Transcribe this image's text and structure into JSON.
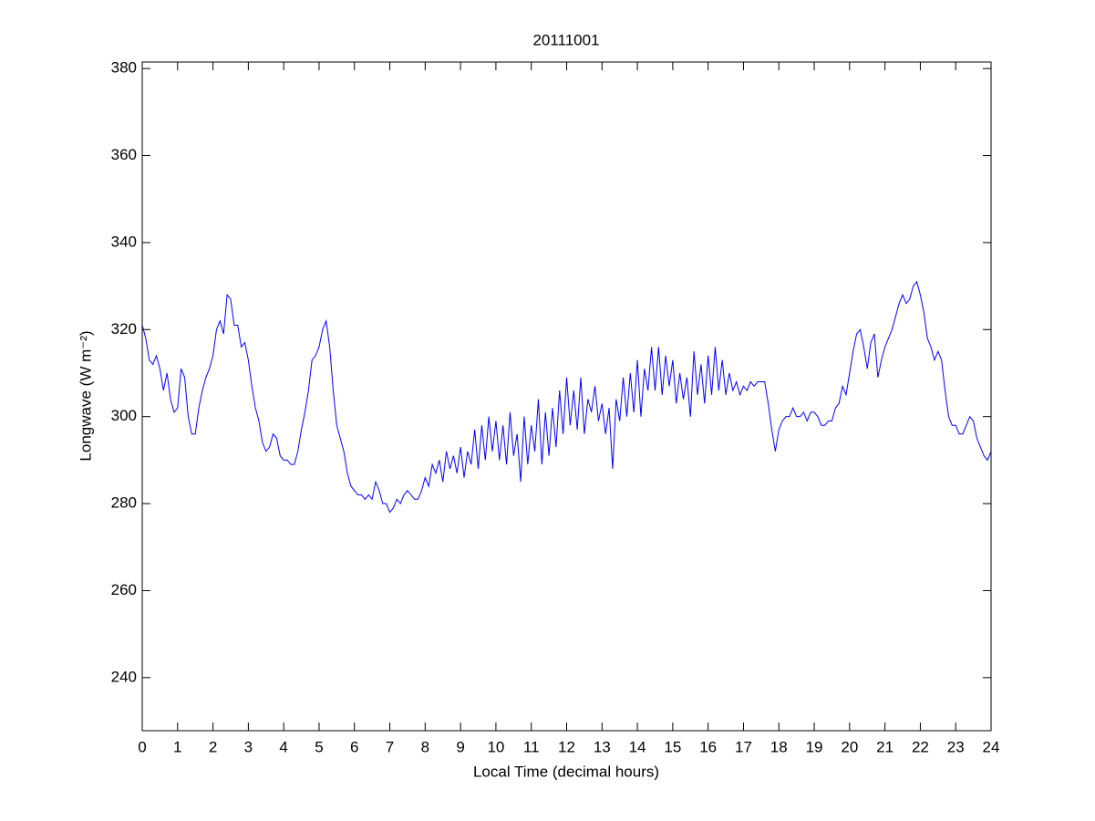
{
  "chart_data": {
    "type": "line",
    "title": "20111001",
    "xlabel": "Local Time (decimal hours)",
    "ylabel": "Longwave (W m⁻²)",
    "x": [
      0,
      0.1,
      0.2,
      0.3,
      0.4,
      0.5,
      0.6,
      0.7,
      0.8,
      0.9,
      1,
      1.1,
      1.2,
      1.3,
      1.4,
      1.5,
      1.6,
      1.7,
      1.8,
      1.9,
      2,
      2.1,
      2.2,
      2.3,
      2.4,
      2.5,
      2.6,
      2.7,
      2.8,
      2.9,
      3,
      3.1,
      3.2,
      3.3,
      3.4,
      3.5,
      3.6,
      3.7,
      3.8,
      3.9,
      4,
      4.1,
      4.2,
      4.3,
      4.4,
      4.5,
      4.6,
      4.7,
      4.8,
      4.9,
      5,
      5.1,
      5.2,
      5.3,
      5.4,
      5.5,
      5.6,
      5.7,
      5.8,
      5.9,
      6,
      6.1,
      6.2,
      6.3,
      6.4,
      6.5,
      6.6,
      6.7,
      6.8,
      6.9,
      7,
      7.1,
      7.2,
      7.3,
      7.4,
      7.5,
      7.6,
      7.7,
      7.8,
      7.9,
      8,
      8.1,
      8.2,
      8.3,
      8.4,
      8.5,
      8.6,
      8.7,
      8.8,
      8.9,
      9,
      9.1,
      9.2,
      9.3,
      9.4,
      9.5,
      9.6,
      9.7,
      9.8,
      9.9,
      10,
      10.1,
      10.2,
      10.3,
      10.4,
      10.5,
      10.6,
      10.7,
      10.8,
      10.9,
      11,
      11.1,
      11.2,
      11.3,
      11.4,
      11.5,
      11.6,
      11.7,
      11.8,
      11.9,
      12,
      12.1,
      12.2,
      12.3,
      12.4,
      12.5,
      12.6,
      12.7,
      12.8,
      12.9,
      13,
      13.1,
      13.2,
      13.3,
      13.4,
      13.5,
      13.6,
      13.7,
      13.8,
      13.9,
      14,
      14.1,
      14.2,
      14.3,
      14.4,
      14.5,
      14.6,
      14.7,
      14.8,
      14.9,
      15,
      15.1,
      15.2,
      15.3,
      15.4,
      15.5,
      15.6,
      15.7,
      15.8,
      15.9,
      16,
      16.1,
      16.2,
      16.3,
      16.4,
      16.5,
      16.6,
      16.7,
      16.8,
      16.9,
      17,
      17.1,
      17.2,
      17.3,
      17.4,
      17.5,
      17.6,
      17.7,
      17.8,
      17.9,
      18,
      18.1,
      18.2,
      18.3,
      18.4,
      18.5,
      18.6,
      18.7,
      18.8,
      18.9,
      19,
      19.1,
      19.2,
      19.3,
      19.4,
      19.5,
      19.6,
      19.7,
      19.8,
      19.9,
      20,
      20.1,
      20.2,
      20.3,
      20.4,
      20.5,
      20.6,
      20.7,
      20.8,
      20.9,
      21,
      21.1,
      21.2,
      21.3,
      21.4,
      21.5,
      21.6,
      21.7,
      21.8,
      21.9,
      22,
      22.1,
      22.2,
      22.3,
      22.4,
      22.5,
      22.6,
      22.7,
      22.8,
      22.9,
      23,
      23.1,
      23.2,
      23.3,
      23.4,
      23.5,
      23.6,
      23.7,
      23.8,
      23.9,
      24
    ],
    "series": [
      {
        "color": "#0000ff",
        "values": [
          321,
          318,
          313,
          312,
          314,
          311,
          306,
          310,
          304,
          301,
          302,
          311,
          309,
          300,
          296,
          296,
          302,
          306,
          309,
          311,
          314,
          320,
          322,
          319,
          328,
          327,
          321,
          321,
          316,
          317,
          313,
          307,
          302,
          299,
          294,
          292,
          293,
          296,
          295,
          291,
          290,
          290,
          289,
          289,
          292,
          297,
          301,
          306,
          313,
          314,
          316,
          320,
          322,
          316,
          306,
          298,
          295,
          292,
          287,
          284,
          283,
          282,
          282,
          281,
          282,
          281,
          285,
          283,
          280,
          280,
          278,
          279,
          281,
          280,
          282,
          283,
          282,
          281,
          281,
          283,
          286,
          284,
          289,
          287,
          290,
          285,
          292,
          288,
          291,
          287,
          293,
          286,
          292,
          289,
          297,
          288,
          298,
          290,
          300,
          292,
          299,
          290,
          298,
          289,
          301,
          291,
          296,
          285,
          300,
          289,
          298,
          292,
          304,
          289,
          301,
          291,
          302,
          293,
          306,
          296,
          309,
          298,
          306,
          297,
          309,
          296,
          304,
          301,
          307,
          299,
          303,
          296,
          302,
          288,
          304,
          299,
          309,
          300,
          310,
          301,
          313,
          300,
          311,
          306,
          316,
          306,
          316,
          305,
          314,
          307,
          313,
          303,
          310,
          304,
          309,
          300,
          315,
          305,
          312,
          303,
          314,
          305,
          316,
          306,
          313,
          305,
          310,
          306,
          308,
          305,
          307,
          306,
          308,
          307,
          308,
          308,
          308,
          303,
          297,
          292,
          297,
          299,
          300,
          300,
          302,
          300,
          300,
          301,
          299,
          301,
          301,
          300,
          298,
          298,
          299,
          299,
          302,
          303,
          307,
          305,
          310,
          315,
          319,
          320,
          316,
          311,
          317,
          319,
          309,
          313,
          316,
          318,
          320,
          323,
          326,
          328,
          326,
          327,
          330,
          331,
          328,
          324,
          318,
          316,
          313,
          315,
          313,
          306,
          300,
          298,
          298,
          296,
          296,
          298,
          300,
          299,
          295,
          293,
          291,
          290,
          292
        ]
      }
    ],
    "xlim": [
      0,
      24
    ],
    "ylim": [
      227.8,
      381.5
    ],
    "xticks": [
      0,
      1,
      2,
      3,
      4,
      5,
      6,
      7,
      8,
      9,
      10,
      11,
      12,
      13,
      14,
      15,
      16,
      17,
      18,
      19,
      20,
      21,
      22,
      23,
      24
    ],
    "yticks": [
      240,
      260,
      280,
      300,
      320,
      340,
      360,
      380
    ]
  }
}
